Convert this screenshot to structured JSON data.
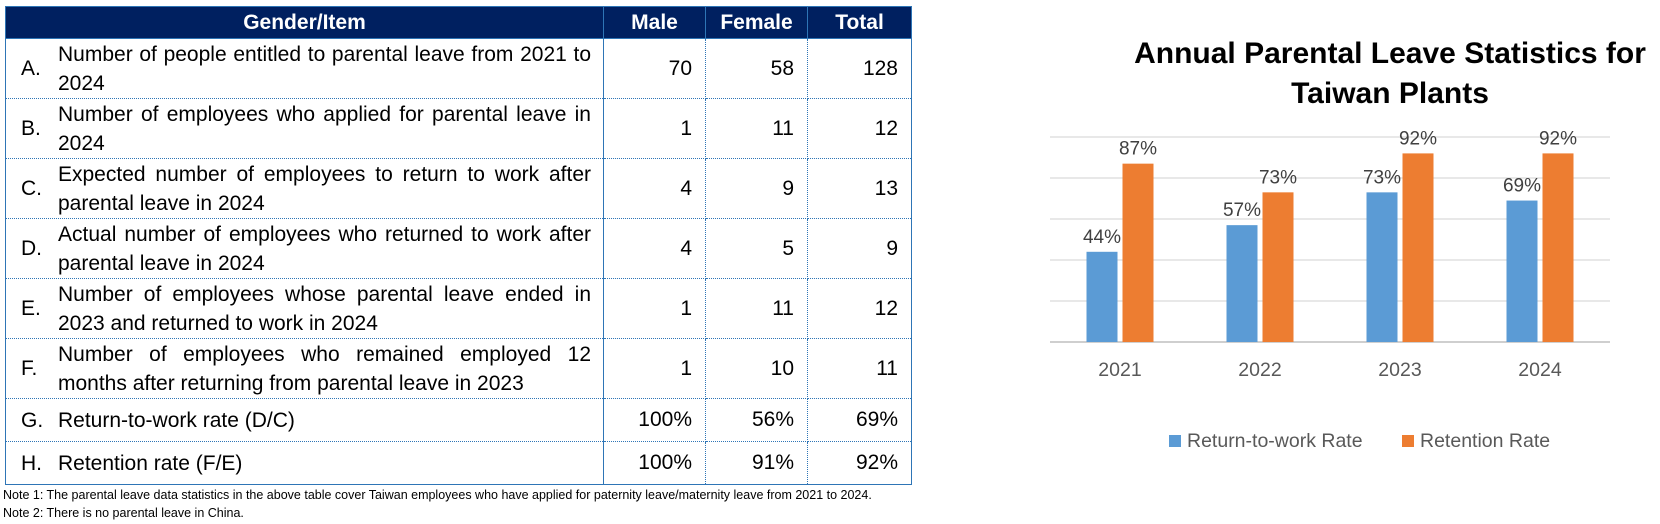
{
  "table": {
    "headers": [
      "Gender/Item",
      "Male",
      "Female",
      "Total"
    ],
    "rows": [
      {
        "letter": "A.",
        "text": "Number of people entitled to parental leave from 2021 to 2024",
        "male": "70",
        "female": "58",
        "total": "128"
      },
      {
        "letter": "B.",
        "text": "Number of employees who applied for parental leave in 2024",
        "male": "1",
        "female": "11",
        "total": "12"
      },
      {
        "letter": "C.",
        "text": "Expected number of employees to return to work after parental leave in 2024",
        "male": "4",
        "female": "9",
        "total": "13"
      },
      {
        "letter": "D.",
        "text": "Actual number of employees who returned to work after parental leave in 2024",
        "male": "4",
        "female": "5",
        "total": "9"
      },
      {
        "letter": "E.",
        "text": "Number of employees whose parental leave ended in 2023 and returned to work in 2024",
        "male": "1",
        "female": "11",
        "total": "12"
      },
      {
        "letter": "F.",
        "text": "Number of employees who remained employed 12 months after returning from parental leave in 2023",
        "male": "1",
        "female": "10",
        "total": "11"
      },
      {
        "letter": "G.",
        "text": "Return-to-work rate (D/C)",
        "male": "100%",
        "female": "56%",
        "total": "69%"
      },
      {
        "letter": "H.",
        "text": "Retention rate (F/E)",
        "male": "100%",
        "female": "91%",
        "total": "92%"
      }
    ]
  },
  "notes": {
    "note1": "Note 1: The parental leave data statistics in the above table cover Taiwan employees who have applied for paternity leave/maternity leave from 2021 to 2024.",
    "note2": "Note 2: There is no parental leave in China."
  },
  "chart_data": {
    "type": "bar",
    "title": "Annual Parental Leave Statistics for Taiwan Plants",
    "categories": [
      "2021",
      "2022",
      "2023",
      "2024"
    ],
    "series": [
      {
        "name": "Return-to-work Rate",
        "values": [
          44,
          57,
          73,
          69
        ],
        "labels": [
          "44%",
          "57%",
          "73%",
          "69%"
        ],
        "color": "#5b9bd5"
      },
      {
        "name": "Retention Rate",
        "values": [
          87,
          73,
          92,
          92
        ],
        "labels": [
          "87%",
          "73%",
          "92%",
          "92%"
        ],
        "color": "#ed7d31"
      }
    ],
    "ylim": [
      0,
      100
    ],
    "grid": true,
    "legend": "bottom"
  }
}
